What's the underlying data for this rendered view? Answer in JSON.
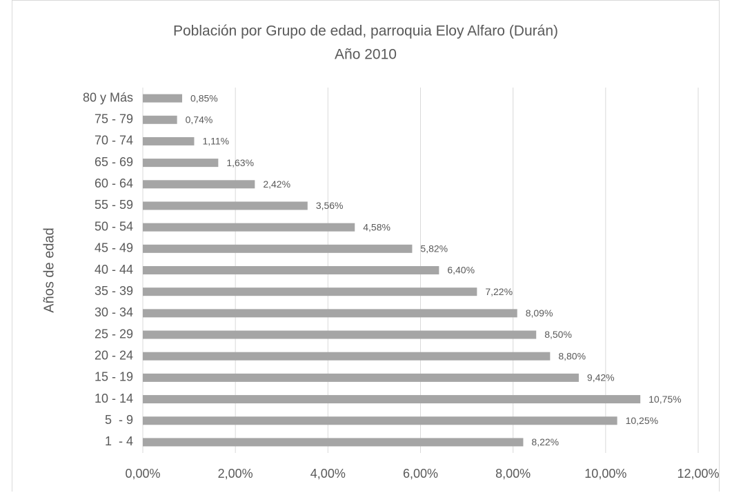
{
  "chart_data": {
    "type": "bar",
    "orientation": "horizontal",
    "title": "Población por Grupo de edad, parroquia Eloy Alfaro (Durán)",
    "subtitle": "Año 2010",
    "y_label": "Años de edad",
    "categories": [
      "1  - 4",
      "5  - 9",
      "10 - 14",
      "15 - 19",
      "20 - 24",
      "25 - 29",
      "30 - 34",
      "35 - 39",
      "40 - 44",
      "45 - 49",
      "50 - 54",
      "55 - 59",
      "60 - 64",
      "65 - 69",
      "70 - 74",
      "75 - 79",
      "80 y Más"
    ],
    "values": [
      8.22,
      10.25,
      10.75,
      9.42,
      8.8,
      8.5,
      8.09,
      7.22,
      6.4,
      5.82,
      4.58,
      3.56,
      2.42,
      1.63,
      1.11,
      0.74,
      0.85
    ],
    "value_labels": [
      "8,22%",
      "10,25%",
      "10,75%",
      "9,42%",
      "8,80%",
      "8,50%",
      "8,09%",
      "7,22%",
      "6,40%",
      "5,82%",
      "4,58%",
      "3,56%",
      "2,42%",
      "1,63%",
      "1,11%",
      "0,74%",
      "0,85%"
    ],
    "color": "#a5a5a5",
    "xlim": [
      0,
      12
    ],
    "xticks": [
      {
        "value": 0,
        "label": "0,00%"
      },
      {
        "value": 2,
        "label": "2,00%"
      },
      {
        "value": 4,
        "label": "4,00%"
      },
      {
        "value": 6,
        "label": "6,00%"
      },
      {
        "value": 8,
        "label": "8,00%"
      },
      {
        "value": 10,
        "label": "10,00%"
      },
      {
        "value": 12,
        "label": "12,00%"
      }
    ],
    "grid": true
  }
}
